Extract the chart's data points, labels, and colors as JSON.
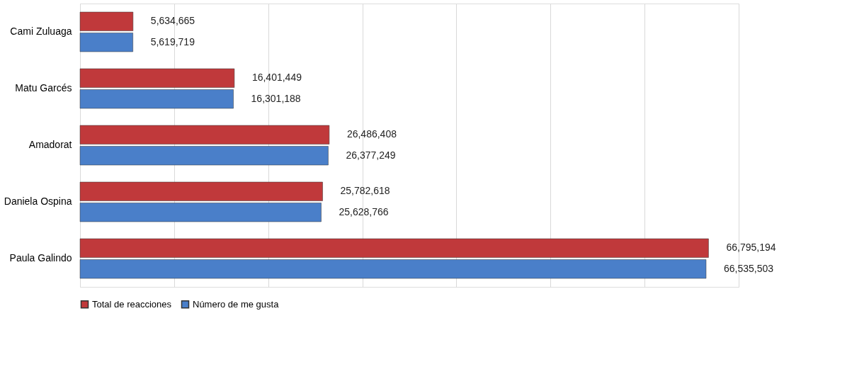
{
  "chart_data": {
    "type": "bar",
    "orientation": "horizontal",
    "categories": [
      "Cami Zuluaga",
      "Matu Garcés",
      "Amadorat",
      "Daniela Ospina",
      "Paula Galindo"
    ],
    "series": [
      {
        "name": "Total de reacciones",
        "color": "#c0393b",
        "values": [
          5634665,
          16401449,
          26486408,
          25782618,
          66795194
        ],
        "value_labels": [
          "5,634,665",
          "16,401,449",
          "26,486,408",
          "25,782,618",
          "66,795,194"
        ]
      },
      {
        "name": "Número de me gusta",
        "color": "#4a7fc9",
        "values": [
          5619719,
          16301188,
          26377249,
          25628766,
          66535503
        ],
        "value_labels": [
          "5,619,719",
          "16,301,188",
          "26,377,249",
          "25,628,766",
          "66,535,503"
        ]
      }
    ],
    "tick_labels": "y",
    "grid": "x",
    "legend": "bottom"
  }
}
